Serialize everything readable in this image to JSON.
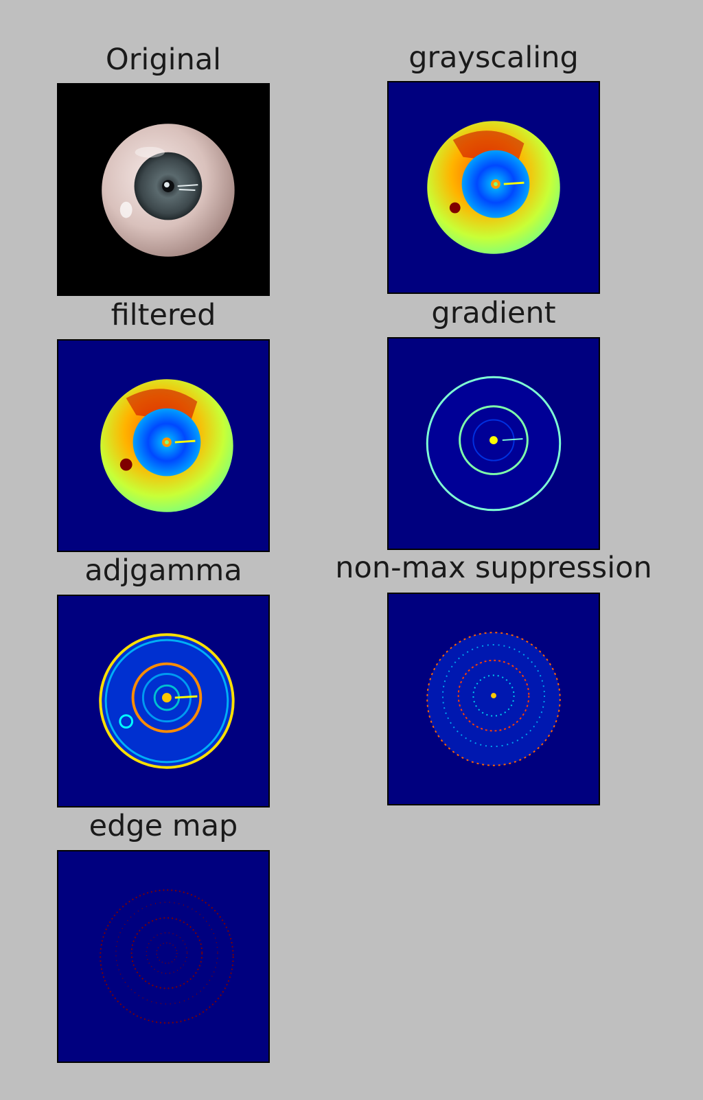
{
  "figure": {
    "background": "#bfbfbf"
  },
  "panels": [
    {
      "title": "Original",
      "kind": "photo"
    },
    {
      "title": "grayscaling",
      "kind": "heatmap"
    },
    {
      "title": "filtered",
      "kind": "heatmap"
    },
    {
      "title": "gradient",
      "kind": "edges"
    },
    {
      "title": "adjgamma",
      "kind": "edges"
    },
    {
      "title": "non-max suppression",
      "kind": "edges"
    },
    {
      "title": "edge map",
      "kind": "edges"
    }
  ],
  "colors": {
    "jet_background": "#00007f",
    "photo_background": "#000000",
    "edge_red": "#7f0000"
  }
}
